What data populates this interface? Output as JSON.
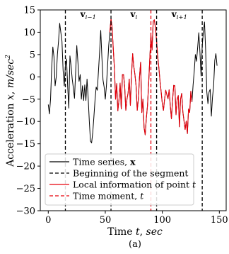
{
  "chart_data": {
    "type": "line",
    "xlabel": "Time $t$, $sec$",
    "xlabel_parts": {
      "prefix": "Time ",
      "var1": "t",
      "mid": ", ",
      "var2": "sec"
    },
    "ylabel": "Acceleration $x$, $m/sec^2$",
    "ylabel_parts": {
      "prefix": "Acceleration ",
      "var1": "x",
      "mid": ", ",
      "unit": "m/sec",
      "sup": "2"
    },
    "xlim": [
      -7,
      156
    ],
    "ylim": [
      -30,
      15
    ],
    "xticks": [
      0,
      50,
      100,
      150
    ],
    "yticks": [
      15,
      10,
      5,
      0,
      -5,
      -10,
      -15,
      -20,
      -25,
      -30
    ],
    "xtick_labels": [
      "0",
      "50",
      "100",
      "150"
    ],
    "ytick_labels": [
      "15",
      "10",
      "5",
      "0",
      "−5",
      "−10",
      "−15",
      "−20",
      "−25",
      "−30"
    ],
    "caption": "(a)",
    "segment_boundaries": [
      15,
      55,
      95,
      135
    ],
    "time_moment": 90,
    "segment_labels": [
      {
        "main": "v",
        "sub": "i−1",
        "x": 35
      },
      {
        "main": "v",
        "sub": "i",
        "x": 75
      },
      {
        "main": "v",
        "sub": "i+1",
        "x": 115
      }
    ],
    "legend": {
      "placement": "lower-left",
      "entries": [
        {
          "label": "Time series, ",
          "bold_suffix": "x",
          "italic_suffix": "",
          "color": "#000000",
          "style": "solid"
        },
        {
          "label": "Beginning of the segment",
          "bold_suffix": "",
          "italic_suffix": "",
          "color": "#000000",
          "style": "dashed"
        },
        {
          "label": "Local information of point ",
          "bold_suffix": "",
          "italic_suffix": "t",
          "color": "#e8000b",
          "style": "solid"
        },
        {
          "label": "Time moment, ",
          "bold_suffix": "",
          "italic_suffix": "t",
          "color": "#e8000b",
          "style": "dashed"
        }
      ]
    },
    "series": [
      {
        "name": "Time series",
        "color": "#000000",
        "x": [
          0,
          1,
          2,
          3,
          4,
          5,
          6,
          7,
          8,
          9,
          10,
          11,
          12,
          13,
          14,
          15,
          16,
          17,
          18,
          19,
          20,
          21,
          22,
          23,
          24,
          25,
          26,
          27,
          28,
          29,
          30,
          31,
          32,
          33,
          34,
          35,
          36,
          37,
          38,
          39,
          40,
          41,
          42,
          43,
          44,
          45,
          46,
          47,
          48,
          49,
          50,
          51,
          52,
          53,
          54,
          55,
          56,
          57,
          58,
          59,
          60,
          61,
          62,
          63,
          64,
          65,
          66,
          67,
          68,
          69,
          70,
          71,
          72,
          73,
          74,
          75,
          76,
          77,
          78,
          79,
          80,
          81,
          82,
          83,
          84,
          85,
          86,
          87,
          88,
          89,
          90,
          91,
          92,
          93,
          94,
          95,
          96,
          97,
          98,
          99,
          100,
          101,
          102,
          103,
          104,
          105,
          106,
          107,
          108,
          109,
          110,
          111,
          112,
          113,
          114,
          115,
          116,
          117,
          118,
          119,
          120,
          121,
          122,
          123,
          124,
          125,
          126,
          127,
          128,
          129,
          130,
          131,
          132,
          133,
          134,
          135,
          136,
          137,
          138,
          139,
          140,
          141,
          142,
          143,
          144,
          145,
          146,
          147,
          148
        ],
        "values": [
          -6.2,
          -8.3,
          -5,
          2,
          6.7,
          4.5,
          -2,
          0,
          5,
          8,
          12,
          10,
          8,
          1.5,
          -2,
          2.5,
          4,
          -2,
          -7,
          4.7,
          2.5,
          -0.5,
          -2.5,
          -4.8,
          1,
          7,
          3.3,
          -1,
          0.5,
          -5,
          -2,
          -5.3,
          -1.8,
          -5.3,
          -0.5,
          -4.8,
          -10,
          -14.4,
          -14.8,
          -12.5,
          -9,
          -5.2,
          -2.3,
          -3,
          1.2,
          5.5,
          10.4,
          4.5,
          -0.7,
          -2.3,
          -5,
          -2,
          2.5,
          7,
          10,
          13,
          11,
          6.3,
          2,
          -5,
          -1.5,
          -7.6,
          -5.2,
          -1.4,
          -7.2,
          0.5,
          0.5,
          -2.2,
          -7.5,
          -5,
          -3.6,
          -0.5,
          -6.4,
          0.5,
          5.2,
          2.3,
          0.5,
          -2,
          -7.5,
          -5,
          0,
          3.3,
          -8,
          -5,
          -11.4,
          -13,
          -9.2,
          -6.5,
          -1.6,
          4,
          9.3,
          6,
          12.4,
          12.8,
          11,
          8,
          4.5,
          2,
          -1,
          -3.4,
          -6,
          -7.5,
          -5,
          -3,
          -4,
          -4.9,
          -2.9,
          -6.5,
          -9.4,
          -5.1,
          -1.9,
          -2,
          -8.5,
          -5,
          -4.2,
          -11.2,
          -5,
          -3.7,
          -7.8,
          -9.8,
          -11.8,
          -9.9,
          -12.7,
          -7.2,
          -8,
          -3.2,
          -5.6,
          -1.8,
          1.3,
          5,
          3.5,
          6.6,
          9.9,
          5.5,
          0.2,
          7,
          10,
          12.3,
          6,
          -3.3,
          -6,
          -3.4,
          -2.8,
          -8.8,
          -4.6,
          -2,
          3.7,
          5.2,
          2.5
        ]
      },
      {
        "name": "Local information of point t",
        "color": "#e8000b",
        "x_start": 54,
        "x_end": 126
      }
    ]
  }
}
